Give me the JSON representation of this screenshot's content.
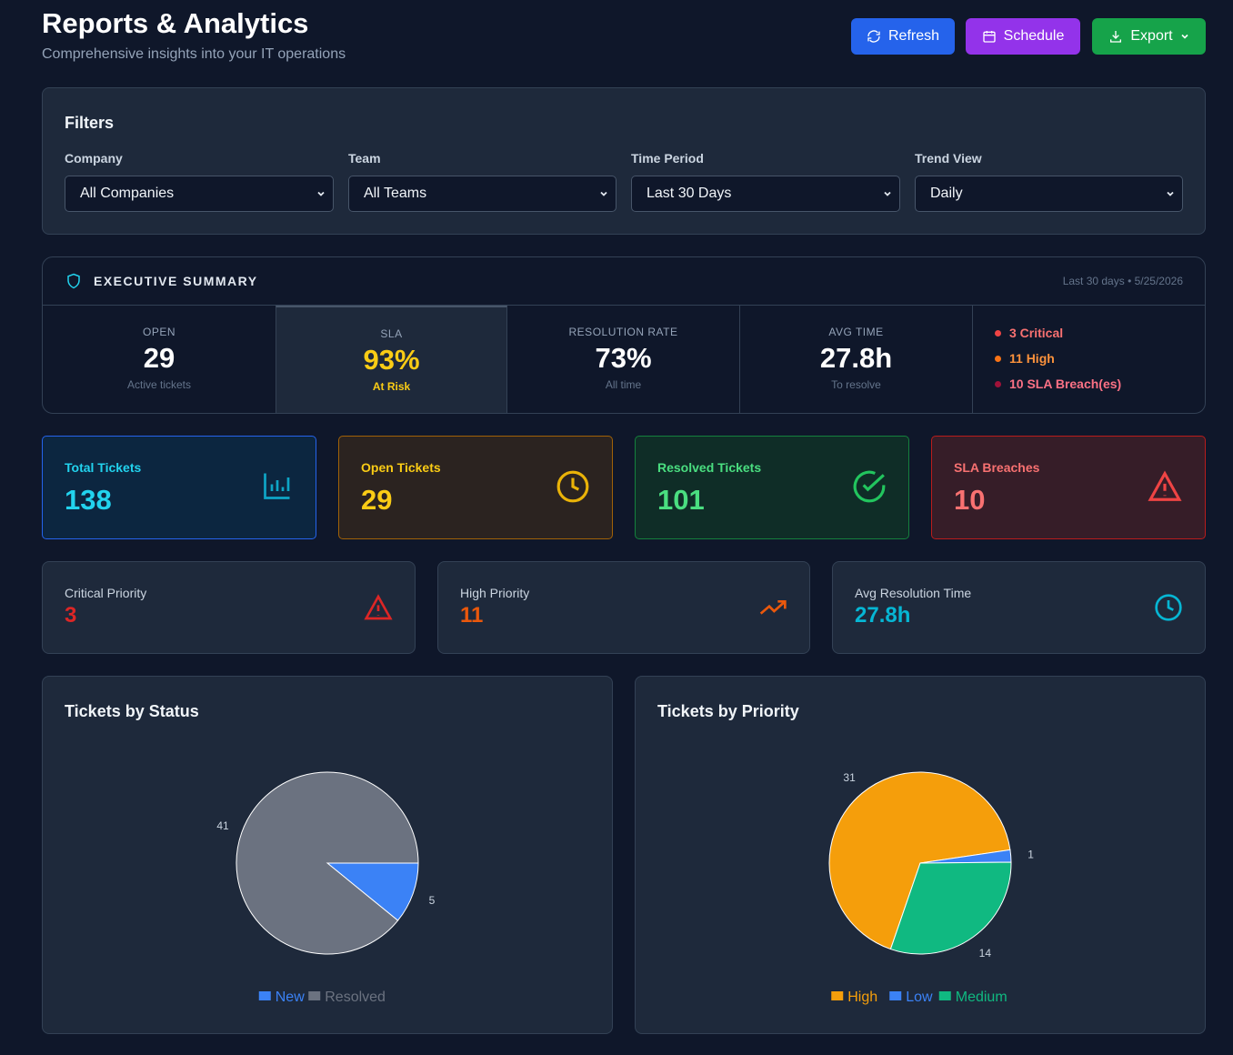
{
  "header": {
    "title": "Reports & Analytics",
    "subtitle": "Comprehensive insights into your IT operations",
    "buttons": [
      "Refresh",
      "Schedule",
      "Export"
    ]
  },
  "filters": {
    "title": "Filters",
    "fields": [
      {
        "label": "Company",
        "value": "All Companies"
      },
      {
        "label": "Team",
        "value": "All Teams"
      },
      {
        "label": "Time Period",
        "value": "Last 30 Days"
      },
      {
        "label": "Trend View",
        "value": "Daily"
      }
    ]
  },
  "summary": {
    "title": "EXECUTIVE SUMMARY",
    "meta": "Last 30 days • 5/25/2026",
    "metrics": [
      {
        "label": "OPEN",
        "value": "29",
        "note": "Active tickets"
      },
      {
        "label": "SLA",
        "value": "93%",
        "note": "At Risk"
      },
      {
        "label": "RESOLUTION RATE",
        "value": "73%",
        "note": "All time"
      },
      {
        "label": "AVG TIME",
        "value": "27.8h",
        "note": "To resolve"
      }
    ],
    "alerts": [
      "3 Critical",
      "11 High",
      "10 SLA Breach(es)"
    ]
  },
  "stats": [
    {
      "label": "Total Tickets",
      "value": "138"
    },
    {
      "label": "Open Tickets",
      "value": "29"
    },
    {
      "label": "Resolved Tickets",
      "value": "101"
    },
    {
      "label": "SLA Breaches",
      "value": "10"
    }
  ],
  "priority_cards": [
    {
      "label": "Critical Priority",
      "value": "3"
    },
    {
      "label": "High Priority",
      "value": "11"
    },
    {
      "label": "Avg Resolution Time",
      "value": "27.8h"
    }
  ],
  "chart_data": [
    {
      "type": "pie",
      "title": "Tickets by Status",
      "categories": [
        "New",
        "Resolved"
      ],
      "values": [
        5,
        41
      ],
      "colors": [
        "#3b82f6",
        "#6b7280"
      ],
      "startangle": 0
    },
    {
      "type": "pie",
      "title": "Tickets by Priority",
      "categories": [
        "High",
        "Low",
        "Medium"
      ],
      "values": [
        31,
        1,
        14
      ],
      "colors": [
        "#f59e0b",
        "#3b82f6",
        "#10b981"
      ],
      "startangle": 109
    }
  ]
}
